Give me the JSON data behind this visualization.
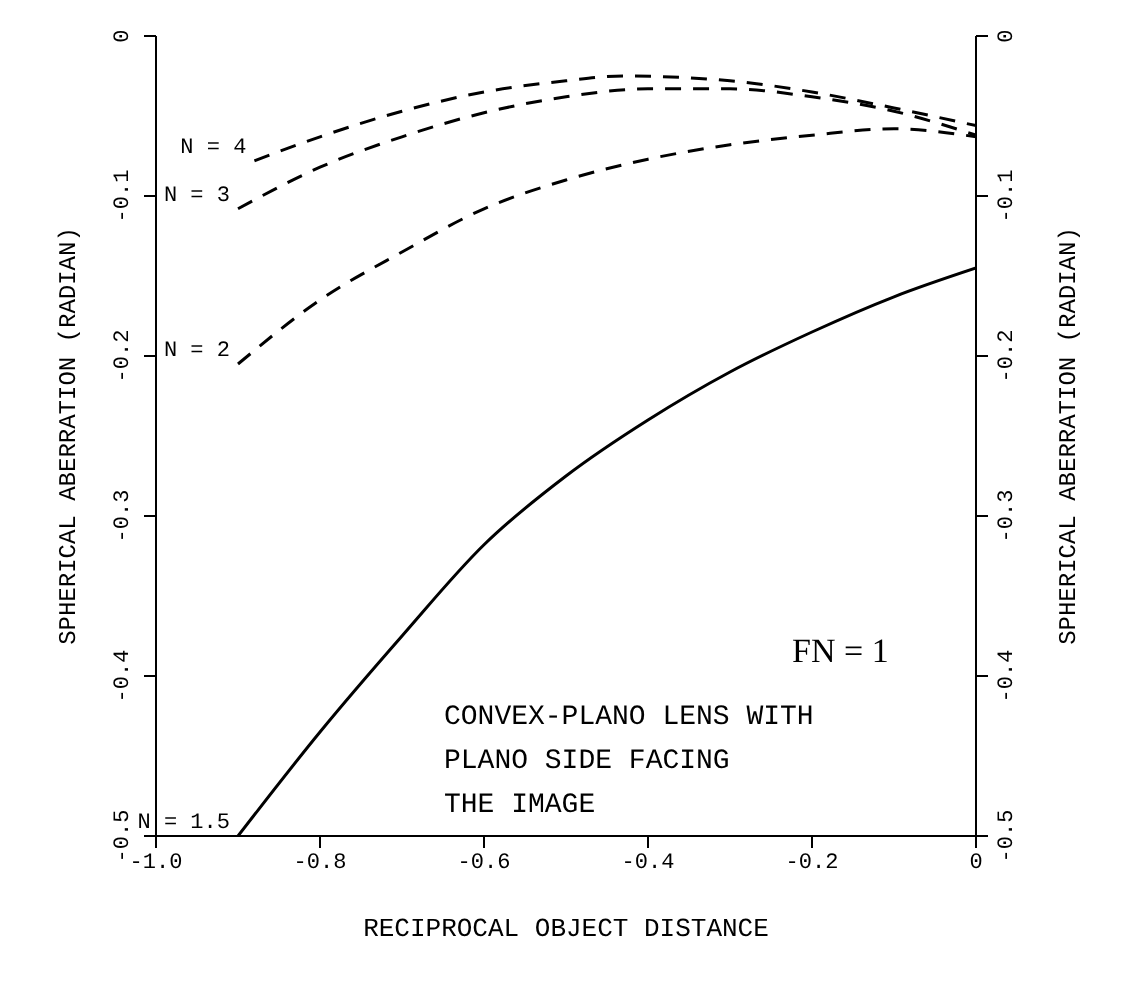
{
  "chart_data": {
    "type": "line",
    "xlabel": "RECIPROCAL OBJECT DISTANCE",
    "ylabel": "SPHERICAL ABERRATION (RADIAN)",
    "y2label": "SPHERICAL ABERRATION (RADIAN)",
    "xlim": [
      -1,
      0
    ],
    "xticks": [
      {
        "value": -1,
        "label": "-1.0"
      },
      -0.8,
      -0.6,
      -0.4,
      -0.2,
      0
    ],
    "ylim": [
      -0.5,
      0
    ],
    "yticks": [
      -0.5,
      -0.4,
      -0.3,
      -0.2,
      -0.1,
      0
    ],
    "y2lim": [
      -0.5,
      0
    ],
    "y2ticks": [
      -0.5,
      -0.4,
      -0.3,
      -0.2,
      -0.1,
      0
    ],
    "marker": "none",
    "annotations": [
      "FN = 1",
      "CONVEX-PLANO LENS WITH\nPLANO SIDE FACING\nTHE IMAGE"
    ],
    "series": [
      {
        "name": "N = 4",
        "color": "#000000",
        "line_style": "dashed",
        "x": [
          -0.88,
          -0.8,
          -0.7,
          -0.6,
          -0.5,
          -0.43,
          -0.3,
          -0.2,
          -0.1,
          0
        ],
        "values": [
          -0.078,
          -0.063,
          -0.047,
          -0.035,
          -0.028,
          -0.025,
          -0.028,
          -0.035,
          -0.045,
          -0.056
        ]
      },
      {
        "name": "N = 3",
        "color": "#000000",
        "line_style": "dashed",
        "x": [
          -0.9,
          -0.8,
          -0.7,
          -0.6,
          -0.5,
          -0.4,
          -0.3,
          -0.2,
          -0.1,
          0
        ],
        "values": [
          -0.108,
          -0.082,
          -0.063,
          -0.048,
          -0.038,
          -0.033,
          -0.033,
          -0.038,
          -0.047,
          -0.062
        ]
      },
      {
        "name": "N = 2",
        "color": "#000000",
        "line_style": "dashed",
        "x": [
          -0.9,
          -0.8,
          -0.7,
          -0.6,
          -0.5,
          -0.4,
          -0.3,
          -0.2,
          -0.1,
          0
        ],
        "values": [
          -0.205,
          -0.165,
          -0.135,
          -0.108,
          -0.09,
          -0.077,
          -0.068,
          -0.062,
          -0.058,
          -0.063
        ]
      },
      {
        "name": "N = 1.5",
        "color": "#000000",
        "line_style": "solid",
        "x": [
          -0.9,
          -0.8,
          -0.7,
          -0.6,
          -0.5,
          -0.4,
          -0.3,
          -0.2,
          -0.1,
          0
        ],
        "values": [
          -0.5,
          -0.435,
          -0.375,
          -0.318,
          -0.275,
          -0.24,
          -0.21,
          -0.185,
          -0.163,
          -0.145
        ]
      }
    ]
  }
}
